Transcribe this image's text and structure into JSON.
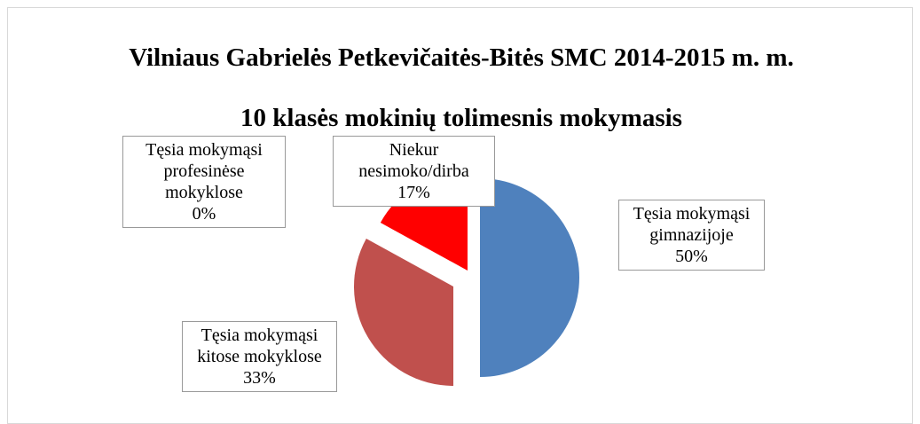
{
  "chart_data": {
    "type": "pie",
    "title": "Vilniaus Gabrielės Petkevičaitės-Bitės SMC  2014-2015 m. m.",
    "subtitle": "10 klasės mokinių tolimesnis mokymasis",
    "categories": [
      "Tęsia mokymąsi gimnazijoje",
      "Tęsia mokymąsi kitose mokyklose",
      "Tęsia mokymąsi profesinėse mokyklose",
      "Niekur nesimoko/dirba"
    ],
    "values": [
      50,
      33,
      0,
      17
    ],
    "value_labels": [
      "50%",
      "33%",
      "0%",
      "17%"
    ],
    "colors": [
      "#4f81bd",
      "#c0504d",
      "#9bbb59",
      "#ff0000"
    ]
  }
}
